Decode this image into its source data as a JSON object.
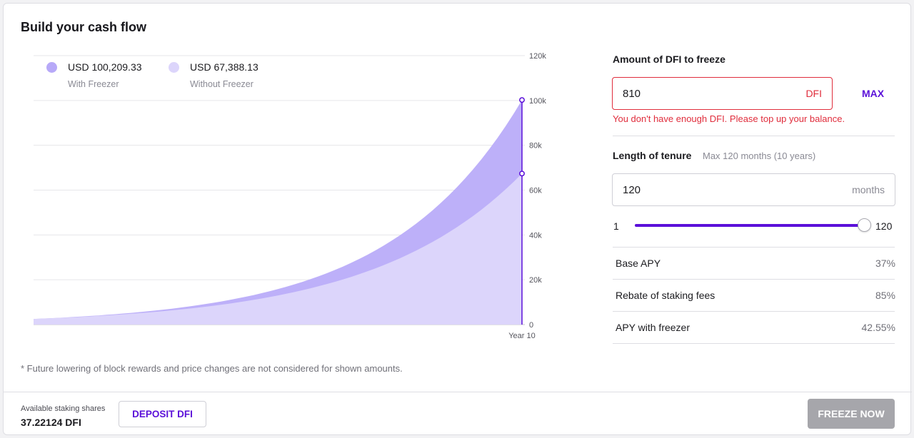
{
  "title": "Build your cash flow",
  "legend": [
    {
      "value": "USD 100,209.33",
      "label": "With Freezer",
      "color": "#b7a9f8"
    },
    {
      "value": "USD 67,388.13",
      "label": "Without Freezer",
      "color": "#dcd5fb"
    }
  ],
  "chart_data": {
    "type": "area",
    "x_label": "Year 10",
    "y_ticks": [
      "0",
      "20k",
      "40k",
      "60k",
      "80k",
      "100k",
      "120k"
    ],
    "ylim": [
      0,
      120000
    ],
    "series": [
      {
        "name": "With Freezer",
        "start": 2500,
        "end": 100209.33,
        "color": "#bdb0f9"
      },
      {
        "name": "Without Freezer",
        "start": 2500,
        "end": 67388.13,
        "color": "#dcd5fb"
      }
    ],
    "marker_color": "#5b10d9"
  },
  "footnote": "* Future lowering of block rewards and price changes are not considered for shown amounts.",
  "amount": {
    "label": "Amount of DFI to freeze",
    "value": "810",
    "unit": "DFI",
    "max_label": "MAX",
    "error": "You don't have enough DFI. Please top up your balance."
  },
  "tenure": {
    "label": "Length of tenure",
    "hint": "Max 120 months (10 years)",
    "value": "120",
    "unit": "months",
    "slider_min": "1",
    "slider_max": "120",
    "slider_fraction": 1.0
  },
  "stats": [
    {
      "label": "Base APY",
      "value": "37%"
    },
    {
      "label": "Rebate of staking fees",
      "value": "85%"
    },
    {
      "label": "APY with freezer",
      "value": "42.55%"
    }
  ],
  "footer": {
    "shares_label": "Available staking shares",
    "shares_value": "37.22124 DFI",
    "deposit_label": "DEPOSIT DFI",
    "freeze_label": "FREEZE NOW"
  }
}
